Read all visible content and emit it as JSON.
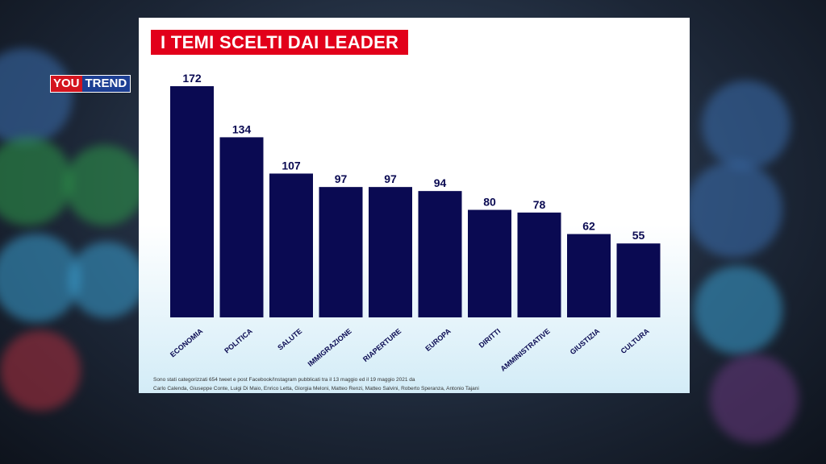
{
  "brand": {
    "part1": "YOU",
    "part2": "TREND"
  },
  "chart_data": {
    "type": "bar",
    "title": "I TEMI SCELTI DAI LEADER",
    "categories": [
      "ECONOMIA",
      "POLITICA",
      "SALUTE",
      "IMMIGRAZIONE",
      "RIAPERTURE",
      "EUROPA",
      "DIRITTI",
      "AMMINISTRATIVE",
      "GIUSTIZIA",
      "CULTURA"
    ],
    "values": [
      172,
      134,
      107,
      97,
      97,
      94,
      80,
      78,
      62,
      55
    ],
    "ylim": [
      0,
      172
    ],
    "bar_color": "#0a0a52",
    "grid": false,
    "legend": "none"
  },
  "footnote": {
    "line1": "Sono stati categorizzati 654 tweet e post Facebook/Instagram pubblicati tra il 13 maggio ed il 19 maggio 2021 da",
    "line2": "Carlo Calenda, Giuseppe Conte, Luigi Di Maio, Enrico Letta, Giorgia Meloni, Matteo Renzi, Matteo Salvini, Roberto Speranza, Antonio Tajani"
  },
  "colors": {
    "accent": "#e2001a",
    "brand_red": "#d4141f",
    "brand_blue": "#1d3f93"
  }
}
